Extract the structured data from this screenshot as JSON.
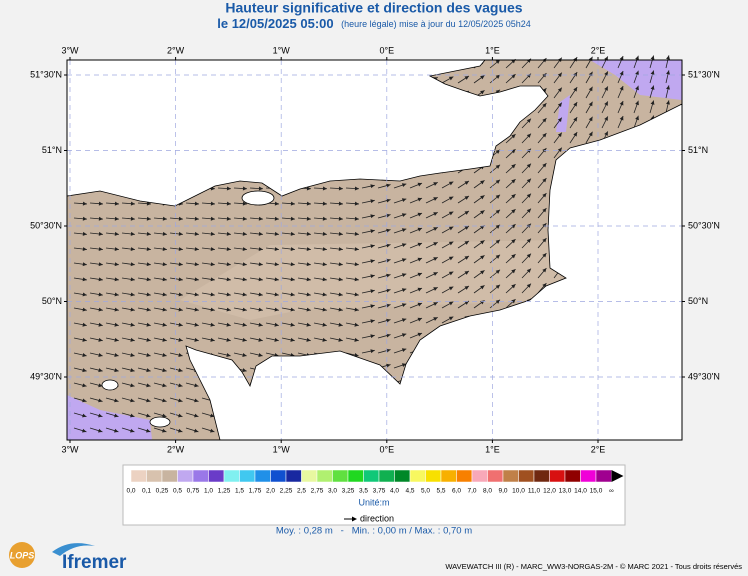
{
  "header": {
    "title": "Hauteur significative et direction des vagues",
    "date": "le 12/05/2025 05:00",
    "update": "(heure légale) mise à jour du 12/05/2025 05h24"
  },
  "map": {
    "longitude_labels": [
      "3°W",
      "2°W",
      "1°W",
      "0°E",
      "1°E",
      "2°E"
    ],
    "latitude_labels": [
      "51°30'N",
      "51°N",
      "50°30'N",
      "50°N",
      "49°30'N"
    ]
  },
  "legend": {
    "labels": [
      "0,0",
      "0,1",
      "0,25",
      "0,5",
      "0,75",
      "1,0",
      "1,25",
      "1,5",
      "1,75",
      "2,0",
      "2,25",
      "2,5",
      "2,75",
      "3,0",
      "3,25",
      "3,5",
      "3,75",
      "4,0",
      "4,5",
      "5,0",
      "5,5",
      "6,0",
      "7,0",
      "8,0",
      "9,0",
      "10,0",
      "11,0",
      "12,0",
      "13,0",
      "14,0",
      "15,0",
      "∞"
    ],
    "colors": [
      "#ecd2c2",
      "#d8c2ae",
      "#c8b4a0",
      "#c0a8f0",
      "#9a78e8",
      "#6a3cc8",
      "#80f0f0",
      "#40c8f0",
      "#2090e8",
      "#1050d0",
      "#1828a0",
      "#e8f8a0",
      "#b0f070",
      "#60e040",
      "#20d820",
      "#10c878",
      "#10b050",
      "#008828",
      "#f8f860",
      "#f8e000",
      "#f8b000",
      "#f88000",
      "#f8a8b8",
      "#f07070",
      "#c08048",
      "#a05020",
      "#702810",
      "#d81010",
      "#900000",
      "#f000d8",
      "#a00090"
    ],
    "unit": "Unité:m",
    "direction": "direction",
    "stats": "Moy. : 0,28 m   -   Min. : 0,00 m / Max. : 0,70 m"
  },
  "footer": {
    "credits": "WAVEWATCH III (R) - MARC_WW3-NORGAS-2M - © MARC 2021 - Tous droits réservés",
    "logos": [
      "LOPS",
      "Ifremer"
    ]
  }
}
